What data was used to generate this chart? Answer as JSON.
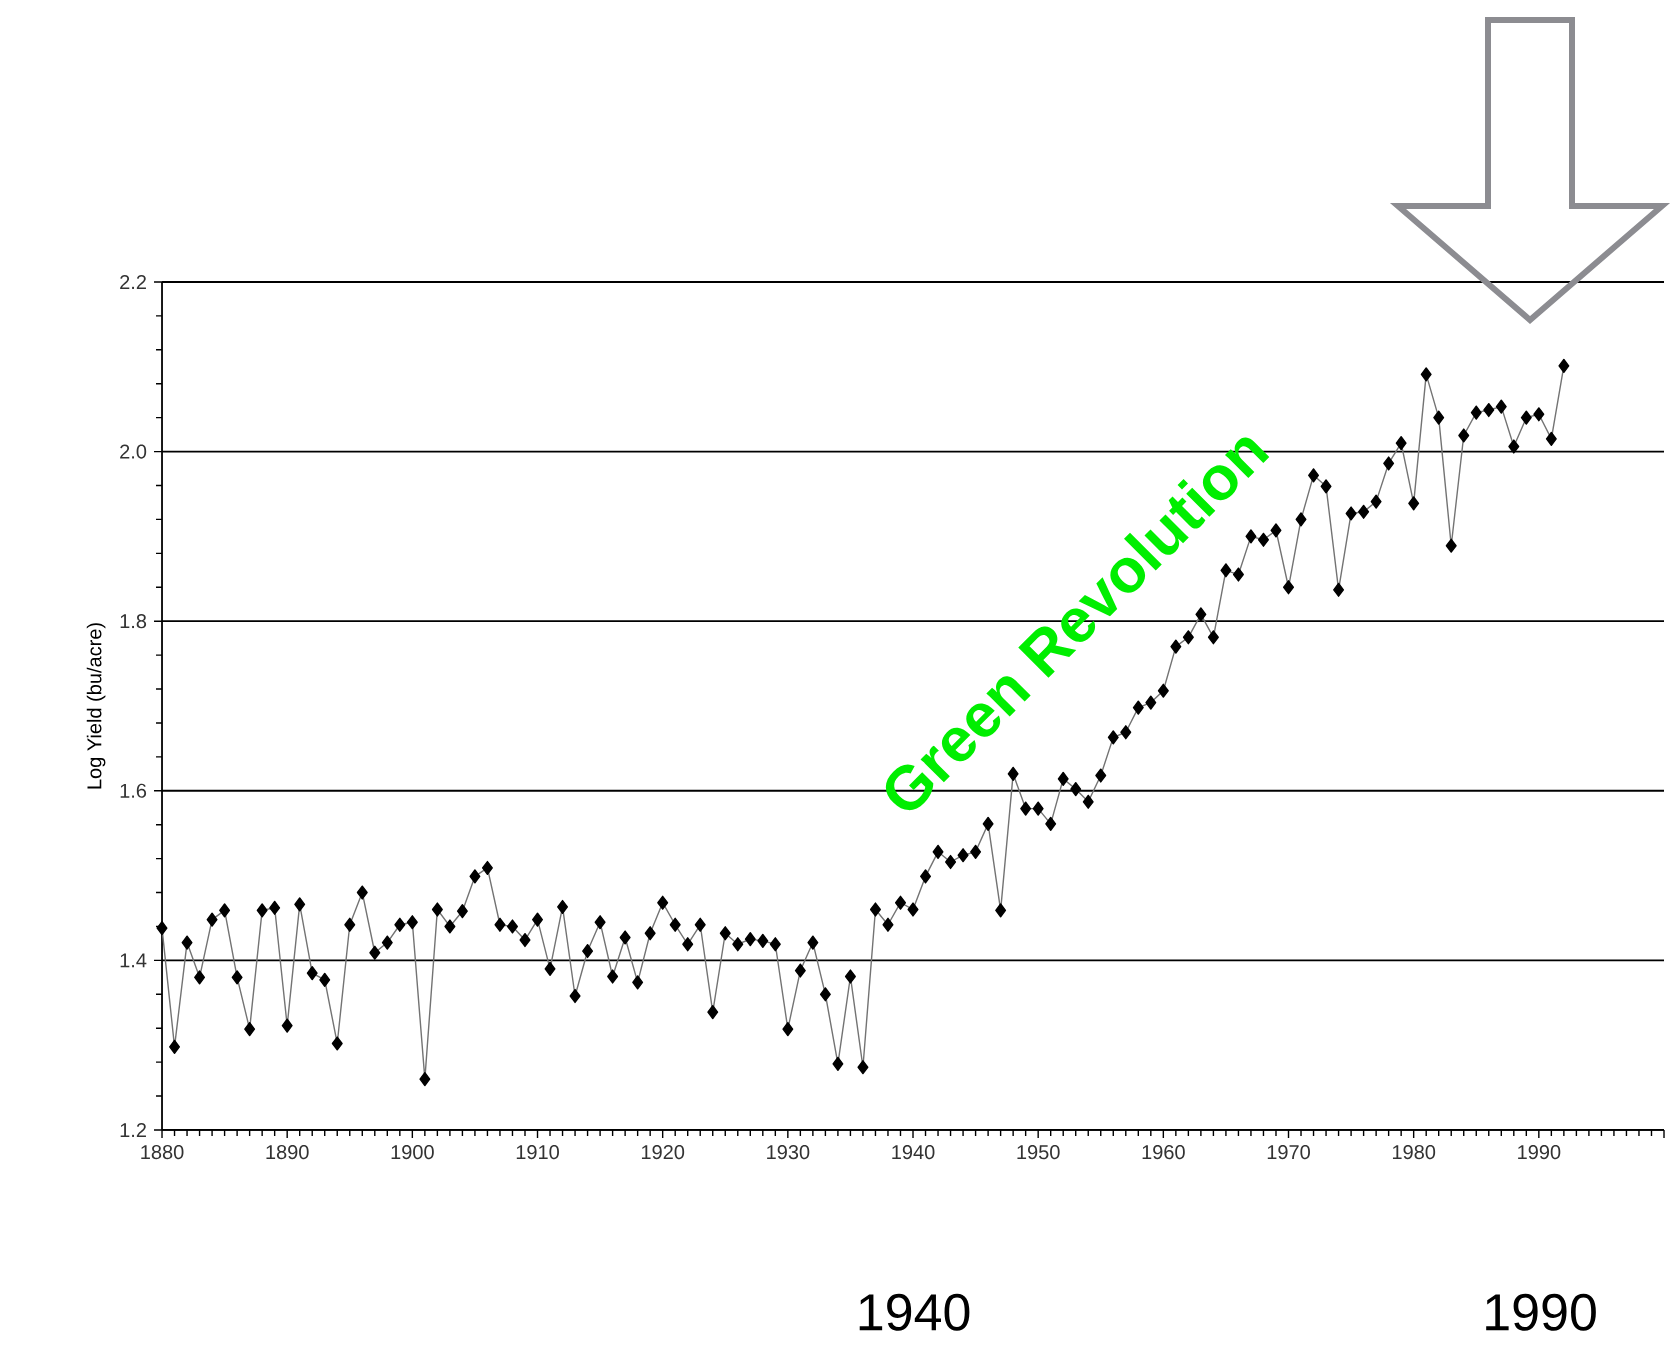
{
  "chart_data": {
    "type": "line",
    "ylabel": "Log Yield (bu/acre)",
    "x": [
      1880,
      1881,
      1882,
      1883,
      1884,
      1885,
      1886,
      1887,
      1888,
      1889,
      1890,
      1891,
      1892,
      1893,
      1894,
      1895,
      1896,
      1897,
      1898,
      1899,
      1900,
      1901,
      1902,
      1903,
      1904,
      1905,
      1906,
      1907,
      1908,
      1909,
      1910,
      1911,
      1912,
      1913,
      1914,
      1915,
      1916,
      1917,
      1918,
      1919,
      1920,
      1921,
      1922,
      1923,
      1924,
      1925,
      1926,
      1927,
      1928,
      1929,
      1930,
      1931,
      1932,
      1933,
      1934,
      1935,
      1936,
      1937,
      1938,
      1939,
      1940,
      1941,
      1942,
      1943,
      1944,
      1945,
      1946,
      1947,
      1948,
      1949,
      1950,
      1951,
      1952,
      1953,
      1954,
      1955,
      1956,
      1957,
      1958,
      1959,
      1960,
      1961,
      1962,
      1963,
      1964,
      1965,
      1966,
      1967,
      1968,
      1969,
      1970,
      1971,
      1972,
      1973,
      1974,
      1975,
      1976,
      1977,
      1978,
      1979,
      1980,
      1981,
      1982,
      1983,
      1984,
      1985,
      1986,
      1987,
      1988,
      1989,
      1990,
      1991,
      1992
    ],
    "series": [
      {
        "color": "#000000",
        "values": [
          1.438,
          1.298,
          1.421,
          1.38,
          1.448,
          1.459,
          1.38,
          1.319,
          1.459,
          1.462,
          1.323,
          1.466,
          1.385,
          1.377,
          1.302,
          1.442,
          1.48,
          1.409,
          1.421,
          1.442,
          1.445,
          1.26,
          1.46,
          1.44,
          1.458,
          1.499,
          1.509,
          1.442,
          1.44,
          1.424,
          1.448,
          1.39,
          1.463,
          1.358,
          1.411,
          1.445,
          1.381,
          1.427,
          1.374,
          1.432,
          1.468,
          1.442,
          1.419,
          1.442,
          1.339,
          1.432,
          1.419,
          1.425,
          1.423,
          1.419,
          1.319,
          1.388,
          1.421,
          1.36,
          1.278,
          1.381,
          1.274,
          1.46,
          1.442,
          1.468,
          1.46,
          1.499,
          1.528,
          1.516,
          1.524,
          1.528,
          1.561,
          1.459,
          1.62,
          1.579,
          1.579,
          1.561,
          1.614,
          1.602,
          1.587,
          1.618,
          1.663,
          1.669,
          1.698,
          1.704,
          1.718,
          1.77,
          1.781,
          1.808,
          1.781,
          1.86,
          1.855,
          1.9,
          1.896,
          1.907,
          1.84,
          1.92,
          1.972,
          1.959,
          1.837,
          1.927,
          1.929,
          1.941,
          1.986,
          2.01,
          1.939,
          2.091,
          2.04,
          1.889,
          2.019,
          2.046,
          2.049,
          2.053,
          2.006,
          2.04,
          2.044,
          2.015,
          2.101
        ]
      }
    ],
    "xlim": [
      1880,
      2000
    ],
    "xticks": [
      1880,
      1890,
      1900,
      1910,
      1920,
      1930,
      1940,
      1950,
      1960,
      1970,
      1980,
      1990,
      {
        "value": 2000,
        "label": null
      }
    ],
    "ylim": [
      1.2,
      2.2
    ],
    "yticks": [
      1.2,
      1.4,
      1.6,
      1.8,
      {
        "value": 2,
        "label": "2.0"
      },
      2.2
    ],
    "grid": "y",
    "marker": "diamond",
    "line_style": "solid",
    "annotations": [
      "Green Revolution",
      "1940",
      "1990"
    ]
  }
}
